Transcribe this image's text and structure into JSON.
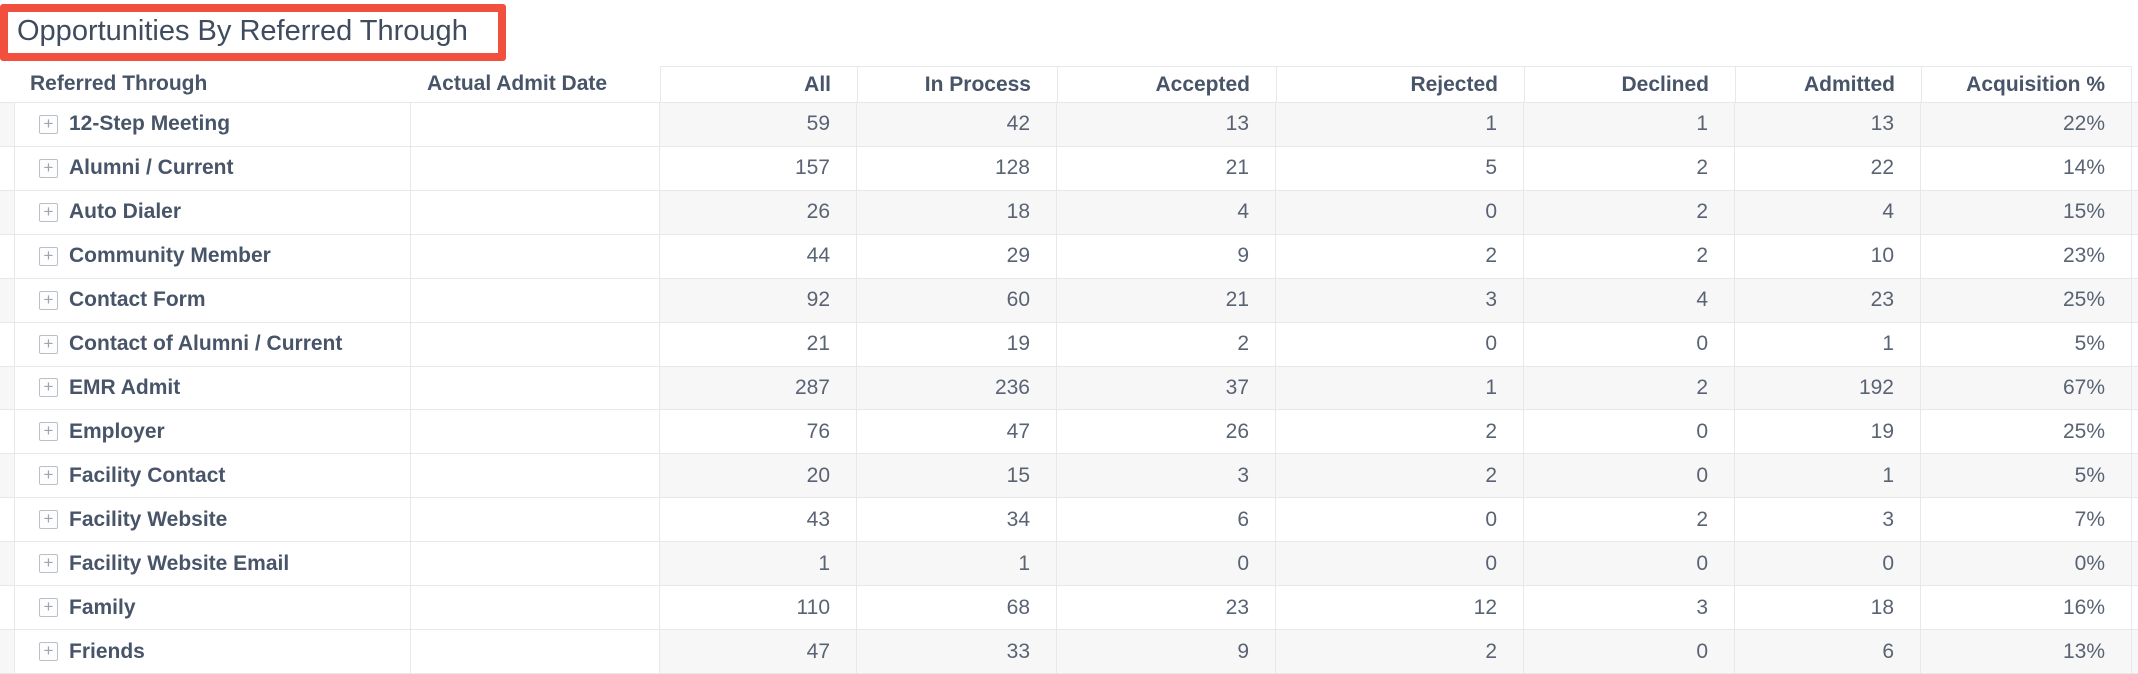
{
  "widget": {
    "title": "Opportunities By Referred Through"
  },
  "colors": {
    "highlight": "#f2503f",
    "stripe": "#f7f7f8",
    "border": "#e7e8ea",
    "header_text": "#485468",
    "number_text": "#5a6373"
  },
  "icons": {
    "expand": "plus-square-icon"
  },
  "table": {
    "columns": [
      {
        "label": "Referred Through"
      },
      {
        "label": "Actual Admit Date"
      },
      {
        "label": "All"
      },
      {
        "label": "In Process"
      },
      {
        "label": "Accepted"
      },
      {
        "label": "Rejected"
      },
      {
        "label": "Declined"
      },
      {
        "label": "Admitted"
      },
      {
        "label": "Acquisition %"
      }
    ],
    "rows": [
      {
        "referred_through": "12-Step Meeting",
        "actual_admit_date": "",
        "values": [
          "59",
          "42",
          "13",
          "1",
          "1",
          "13",
          "22%"
        ]
      },
      {
        "referred_through": "Alumni / Current",
        "actual_admit_date": "",
        "values": [
          "157",
          "128",
          "21",
          "5",
          "2",
          "22",
          "14%"
        ]
      },
      {
        "referred_through": "Auto Dialer",
        "actual_admit_date": "",
        "values": [
          "26",
          "18",
          "4",
          "0",
          "2",
          "4",
          "15%"
        ]
      },
      {
        "referred_through": "Community Member",
        "actual_admit_date": "",
        "values": [
          "44",
          "29",
          "9",
          "2",
          "2",
          "10",
          "23%"
        ]
      },
      {
        "referred_through": "Contact Form",
        "actual_admit_date": "",
        "values": [
          "92",
          "60",
          "21",
          "3",
          "4",
          "23",
          "25%"
        ]
      },
      {
        "referred_through": "Contact of Alumni / Current",
        "actual_admit_date": "",
        "values": [
          "21",
          "19",
          "2",
          "0",
          "0",
          "1",
          "5%"
        ]
      },
      {
        "referred_through": "EMR Admit",
        "actual_admit_date": "",
        "values": [
          "287",
          "236",
          "37",
          "1",
          "2",
          "192",
          "67%"
        ]
      },
      {
        "referred_through": "Employer",
        "actual_admit_date": "",
        "values": [
          "76",
          "47",
          "26",
          "2",
          "0",
          "19",
          "25%"
        ]
      },
      {
        "referred_through": "Facility Contact",
        "actual_admit_date": "",
        "values": [
          "20",
          "15",
          "3",
          "2",
          "0",
          "1",
          "5%"
        ]
      },
      {
        "referred_through": "Facility Website",
        "actual_admit_date": "",
        "values": [
          "43",
          "34",
          "6",
          "0",
          "2",
          "3",
          "7%"
        ]
      },
      {
        "referred_through": "Facility Website Email",
        "actual_admit_date": "",
        "values": [
          "1",
          "1",
          "0",
          "0",
          "0",
          "0",
          "0%"
        ]
      },
      {
        "referred_through": "Family",
        "actual_admit_date": "",
        "values": [
          "110",
          "68",
          "23",
          "12",
          "3",
          "18",
          "16%"
        ]
      },
      {
        "referred_through": "Friends",
        "actual_admit_date": "",
        "values": [
          "47",
          "33",
          "9",
          "2",
          "0",
          "6",
          "13%"
        ]
      }
    ]
  }
}
